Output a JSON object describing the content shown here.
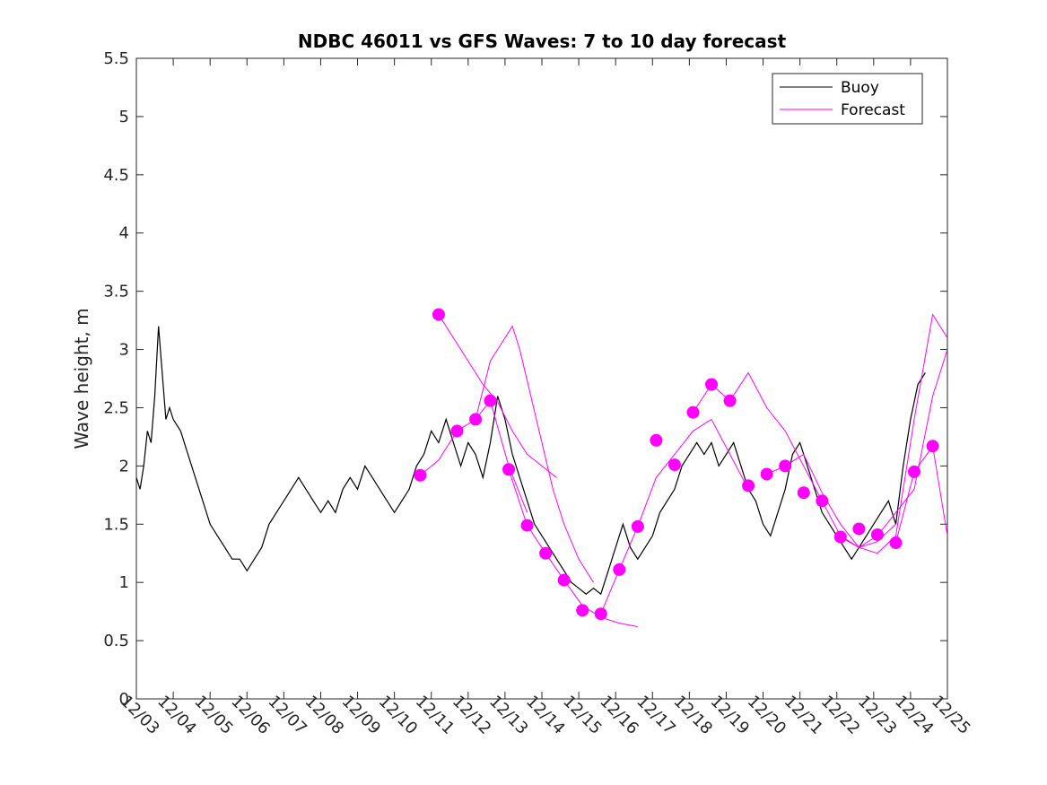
{
  "chart_data": {
    "type": "line",
    "title": "NDBC 46011 vs GFS Waves: 7 to 10 day forecast",
    "xlabel": "",
    "ylabel": "Wave height, m",
    "ylim": [
      0,
      5.5
    ],
    "yticks": [
      0,
      0.5,
      1,
      1.5,
      2,
      2.5,
      3,
      3.5,
      4,
      4.5,
      5,
      5.5
    ],
    "ytick_labels": [
      "0",
      "0.5",
      "1",
      "1.5",
      "2",
      "2.5",
      "3",
      "3.5",
      "4",
      "4.5",
      "5",
      "5.5"
    ],
    "xlim": [
      0,
      22
    ],
    "xtick_labels": [
      "12/03",
      "12/04",
      "12/05",
      "12/06",
      "12/07",
      "12/08",
      "12/09",
      "12/10",
      "12/11",
      "12/12",
      "12/13",
      "12/14",
      "12/15",
      "12/16",
      "12/17",
      "12/18",
      "12/19",
      "12/20",
      "12/21",
      "12/22",
      "12/23",
      "12/24",
      "12/25"
    ],
    "x_units": "days since 12/03 00:00",
    "grid": false,
    "legend": {
      "location": "top-right",
      "entries": [
        "Buoy",
        "Forecast"
      ]
    },
    "colors": {
      "buoy": "#000000",
      "forecast": "#ff00ff"
    },
    "series": [
      {
        "name": "Buoy",
        "color": "#000000",
        "x": [
          0,
          0.1,
          0.2,
          0.3,
          0.4,
          0.5,
          0.6,
          0.7,
          0.8,
          0.9,
          1.0,
          1.2,
          1.4,
          1.6,
          1.8,
          2.0,
          2.2,
          2.4,
          2.6,
          2.8,
          3.0,
          3.2,
          3.4,
          3.6,
          3.8,
          4.0,
          4.2,
          4.4,
          4.6,
          4.8,
          5.0,
          5.2,
          5.4,
          5.6,
          5.8,
          6.0,
          6.2,
          6.4,
          6.6,
          6.8,
          7.0,
          7.2,
          7.4,
          7.6,
          7.8,
          8.0,
          8.2,
          8.4,
          8.6,
          8.8,
          9.0,
          9.2,
          9.4,
          9.6,
          9.8,
          10.0,
          10.2,
          10.4,
          10.6,
          10.8,
          11.0,
          11.2,
          11.4,
          11.6,
          11.8,
          12.0,
          12.2,
          12.4,
          12.6,
          12.8,
          13.0,
          13.2,
          13.4,
          13.6,
          13.8,
          14.0,
          14.2,
          14.4,
          14.6,
          14.8,
          15.0,
          15.2,
          15.4,
          15.6,
          15.8,
          16.0,
          16.2,
          16.4,
          16.6,
          16.8,
          17.0,
          17.2,
          17.4,
          17.6,
          17.8,
          18.0,
          18.2,
          18.4,
          18.6,
          18.8,
          19.0,
          19.2,
          19.4,
          19.6,
          19.8,
          20.0,
          20.2,
          20.4,
          20.6,
          20.8,
          21.0,
          21.2,
          21.4
        ],
        "y": [
          1.9,
          1.8,
          2.0,
          2.3,
          2.2,
          2.6,
          3.2,
          2.8,
          2.4,
          2.5,
          2.4,
          2.3,
          2.1,
          1.9,
          1.7,
          1.5,
          1.4,
          1.3,
          1.2,
          1.2,
          1.1,
          1.2,
          1.3,
          1.5,
          1.6,
          1.7,
          1.8,
          1.9,
          1.8,
          1.7,
          1.6,
          1.7,
          1.6,
          1.8,
          1.9,
          1.8,
          2.0,
          1.9,
          1.8,
          1.7,
          1.6,
          1.7,
          1.8,
          2.0,
          2.1,
          2.3,
          2.2,
          2.4,
          2.2,
          2.0,
          2.2,
          2.1,
          1.9,
          2.2,
          2.6,
          2.4,
          2.1,
          1.9,
          1.7,
          1.5,
          1.4,
          1.3,
          1.2,
          1.1,
          1.0,
          0.95,
          0.9,
          0.95,
          0.9,
          1.1,
          1.3,
          1.5,
          1.3,
          1.2,
          1.3,
          1.4,
          1.6,
          1.7,
          1.8,
          2.0,
          2.1,
          2.2,
          2.1,
          2.2,
          2.0,
          2.1,
          2.2,
          2.0,
          1.8,
          1.7,
          1.5,
          1.4,
          1.6,
          1.8,
          2.1,
          2.2,
          2.0,
          1.8,
          1.6,
          1.5,
          1.4,
          1.3,
          1.2,
          1.3,
          1.4,
          1.5,
          1.6,
          1.7,
          1.5,
          2.0,
          2.4,
          2.7,
          2.8
        ]
      },
      {
        "name": "Forecast",
        "color": "#ff00ff",
        "markers": {
          "x": [
            7.7,
            8.2,
            8.7,
            9.2,
            9.6,
            10.1,
            10.6,
            11.1,
            11.6,
            12.1,
            12.6,
            13.1,
            13.6,
            14.1,
            14.6,
            15.1,
            15.6,
            16.1,
            16.6,
            17.1,
            17.6,
            18.1,
            18.6,
            19.1,
            19.6,
            20.1,
            20.6,
            21.1,
            21.6
          ],
          "y": [
            1.92,
            3.3,
            2.3,
            2.4,
            2.56,
            1.97,
            1.49,
            1.25,
            1.02,
            0.76,
            0.73,
            1.11,
            1.48,
            2.22,
            2.01,
            2.46,
            2.7,
            2.56,
            1.83,
            1.93,
            2.0,
            1.77,
            1.7,
            1.39,
            1.46,
            1.41,
            1.34,
            1.95,
            2.17
          ]
        },
        "lines": [
          {
            "x": [
              8.2,
              8.6,
              9.0,
              9.4,
              9.8,
              10.2,
              10.6,
              11.0,
              11.4
            ],
            "y": [
              3.3,
              3.1,
              2.9,
              2.7,
              2.55,
              2.3,
              2.1,
              2.0,
              1.9
            ]
          },
          {
            "x": [
              9.2,
              9.6,
              10.0,
              10.2,
              10.4,
              10.7,
              11.0,
              11.3,
              11.6,
              12.0,
              12.4
            ],
            "y": [
              2.4,
              2.9,
              3.1,
              3.2,
              3.0,
              2.6,
              2.2,
              1.8,
              1.5,
              1.2,
              1.0
            ]
          },
          {
            "x": [
              7.7,
              8.2,
              8.7,
              9.2,
              9.6,
              10.1,
              10.6
            ],
            "y": [
              1.92,
              2.05,
              2.3,
              2.4,
              2.56,
              2.0,
              1.6
            ]
          },
          {
            "x": [
              10.1,
              10.6,
              11.1,
              11.6,
              12.1,
              12.6,
              13.1,
              13.6
            ],
            "y": [
              1.97,
              1.49,
              1.25,
              1.02,
              0.8,
              0.7,
              0.65,
              0.62
            ]
          },
          {
            "x": [
              12.6,
              13.1,
              13.6,
              14.1,
              14.6,
              15.1,
              15.6,
              16.1,
              16.6
            ],
            "y": [
              0.73,
              1.11,
              1.48,
              1.9,
              2.1,
              2.3,
              2.4,
              2.1,
              1.8
            ]
          },
          {
            "x": [
              15.1,
              15.6,
              16.1,
              16.6,
              17.1,
              17.6,
              18.1,
              18.6,
              19.1,
              19.6,
              20.1,
              20.6
            ],
            "y": [
              2.46,
              2.7,
              2.56,
              2.8,
              2.5,
              2.3,
              2.0,
              1.7,
              1.4,
              1.3,
              1.35,
              1.5
            ]
          },
          {
            "x": [
              17.1,
              17.6,
              18.1,
              18.6,
              19.1,
              19.6,
              20.1,
              20.6,
              21.1,
              21.6,
              22.0
            ],
            "y": [
              1.93,
              2.0,
              2.1,
              1.77,
              1.5,
              1.3,
              1.25,
              1.4,
              2.4,
              3.3,
              3.1
            ]
          },
          {
            "x": [
              19.1,
              19.6,
              20.1,
              20.6,
              21.1,
              21.6,
              22.0
            ],
            "y": [
              1.39,
              1.3,
              1.4,
              1.6,
              1.8,
              2.6,
              3.0
            ]
          },
          {
            "x": [
              20.6,
              21.1,
              21.6,
              22.0
            ],
            "y": [
              1.34,
              1.95,
              2.17,
              1.4
            ]
          }
        ]
      }
    ]
  }
}
